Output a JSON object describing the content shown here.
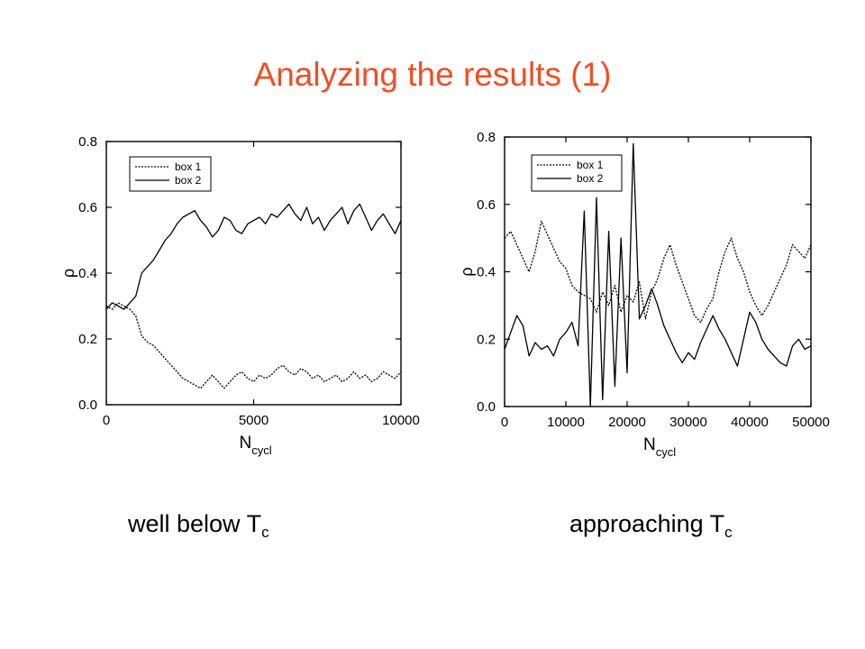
{
  "slide": {
    "title": "Analyzing the results (1)",
    "title_color": "#f04e23"
  },
  "chart_data": [
    {
      "type": "line",
      "ylabel": "ρ",
      "xlabel_main": "N",
      "xlabel_sub": "cycl",
      "xlim": [
        0,
        10000
      ],
      "ylim": [
        0,
        0.8
      ],
      "xticks": [
        "0",
        "5000",
        "10000"
      ],
      "xtick_values": [
        0,
        5000,
        10000
      ],
      "yticks": [
        "0.0",
        "0.2",
        "0.4",
        "0.6",
        "0.8"
      ],
      "ytick_values": [
        0,
        0.2,
        0.4,
        0.6,
        0.8
      ],
      "legend_position": "top-left",
      "grid": false,
      "series": [
        {
          "name": "box 1",
          "style": "dotted",
          "x": [
            0,
            200,
            400,
            600,
            800,
            1000,
            1200,
            1400,
            1600,
            1800,
            2000,
            2200,
            2400,
            2600,
            2800,
            3000,
            3200,
            3400,
            3600,
            3800,
            4000,
            4200,
            4400,
            4600,
            4800,
            5000,
            5200,
            5400,
            5600,
            5800,
            6000,
            6200,
            6400,
            6600,
            6800,
            7000,
            7200,
            7400,
            7600,
            7800,
            8000,
            8200,
            8400,
            8600,
            8800,
            9000,
            9200,
            9400,
            9600,
            9800,
            10000
          ],
          "y": [
            0.3,
            0.29,
            0.31,
            0.3,
            0.29,
            0.27,
            0.21,
            0.19,
            0.18,
            0.16,
            0.14,
            0.12,
            0.1,
            0.08,
            0.07,
            0.06,
            0.05,
            0.07,
            0.09,
            0.07,
            0.05,
            0.07,
            0.09,
            0.1,
            0.08,
            0.07,
            0.09,
            0.08,
            0.09,
            0.11,
            0.12,
            0.1,
            0.09,
            0.11,
            0.1,
            0.08,
            0.09,
            0.07,
            0.08,
            0.09,
            0.07,
            0.08,
            0.1,
            0.08,
            0.09,
            0.07,
            0.08,
            0.1,
            0.09,
            0.08,
            0.1
          ]
        },
        {
          "name": "box 2",
          "style": "solid",
          "x": [
            0,
            200,
            400,
            600,
            800,
            1000,
            1200,
            1400,
            1600,
            1800,
            2000,
            2200,
            2400,
            2600,
            2800,
            3000,
            3200,
            3400,
            3600,
            3800,
            4000,
            4200,
            4400,
            4600,
            4800,
            5000,
            5200,
            5400,
            5600,
            5800,
            6000,
            6200,
            6400,
            6600,
            6800,
            7000,
            7200,
            7400,
            7600,
            7800,
            8000,
            8200,
            8400,
            8600,
            8800,
            9000,
            9200,
            9400,
            9600,
            9800,
            10000
          ],
          "y": [
            0.29,
            0.31,
            0.3,
            0.29,
            0.31,
            0.33,
            0.4,
            0.42,
            0.44,
            0.47,
            0.5,
            0.52,
            0.55,
            0.57,
            0.58,
            0.59,
            0.56,
            0.54,
            0.51,
            0.53,
            0.57,
            0.56,
            0.53,
            0.52,
            0.55,
            0.56,
            0.57,
            0.55,
            0.58,
            0.57,
            0.59,
            0.61,
            0.58,
            0.56,
            0.6,
            0.55,
            0.57,
            0.53,
            0.56,
            0.58,
            0.6,
            0.55,
            0.59,
            0.61,
            0.57,
            0.53,
            0.56,
            0.58,
            0.55,
            0.52,
            0.56
          ]
        }
      ]
    },
    {
      "type": "line",
      "ylabel": "ρ",
      "xlabel_main": "N",
      "xlabel_sub": "cycl",
      "xlim": [
        0,
        50000
      ],
      "ylim": [
        0,
        0.8
      ],
      "xticks": [
        "0",
        "10000",
        "20000",
        "30000",
        "40000",
        "50000"
      ],
      "xtick_values": [
        0,
        10000,
        20000,
        30000,
        40000,
        50000
      ],
      "yticks": [
        "0.0",
        "0.2",
        "0.4",
        "0.6",
        "0.8"
      ],
      "ytick_values": [
        0,
        0.2,
        0.4,
        0.6,
        0.8
      ],
      "legend_position": "top-left",
      "grid": false,
      "series": [
        {
          "name": "box 1",
          "style": "dotted",
          "x": [
            0,
            1000,
            2000,
            3000,
            4000,
            5000,
            6000,
            7000,
            8000,
            9000,
            10000,
            11000,
            12000,
            13000,
            14000,
            15000,
            16000,
            17000,
            18000,
            19000,
            20000,
            21000,
            22000,
            23000,
            24000,
            25000,
            26000,
            27000,
            28000,
            29000,
            30000,
            31000,
            32000,
            33000,
            34000,
            35000,
            36000,
            37000,
            38000,
            39000,
            40000,
            41000,
            42000,
            43000,
            44000,
            45000,
            46000,
            47000,
            48000,
            49000,
            50000
          ],
          "y": [
            0.5,
            0.52,
            0.48,
            0.44,
            0.4,
            0.46,
            0.55,
            0.51,
            0.47,
            0.43,
            0.41,
            0.36,
            0.34,
            0.33,
            0.32,
            0.28,
            0.34,
            0.3,
            0.36,
            0.28,
            0.33,
            0.31,
            0.37,
            0.26,
            0.34,
            0.38,
            0.44,
            0.48,
            0.42,
            0.37,
            0.32,
            0.27,
            0.25,
            0.29,
            0.32,
            0.4,
            0.46,
            0.5,
            0.44,
            0.4,
            0.34,
            0.3,
            0.27,
            0.3,
            0.34,
            0.38,
            0.42,
            0.48,
            0.46,
            0.44,
            0.48
          ]
        },
        {
          "name": "box 2",
          "style": "solid",
          "x": [
            0,
            1000,
            2000,
            3000,
            4000,
            5000,
            6000,
            7000,
            8000,
            9000,
            10000,
            11000,
            12000,
            13000,
            14000,
            15000,
            16000,
            17000,
            18000,
            19000,
            20000,
            21000,
            22000,
            23000,
            24000,
            25000,
            26000,
            27000,
            28000,
            29000,
            30000,
            31000,
            32000,
            33000,
            34000,
            35000,
            36000,
            37000,
            38000,
            39000,
            40000,
            41000,
            42000,
            43000,
            44000,
            45000,
            46000,
            47000,
            48000,
            49000,
            50000
          ],
          "y": [
            0.17,
            0.22,
            0.27,
            0.24,
            0.15,
            0.19,
            0.17,
            0.18,
            0.15,
            0.2,
            0.22,
            0.25,
            0.18,
            0.58,
            0.0,
            0.62,
            0.02,
            0.52,
            0.06,
            0.5,
            0.1,
            0.78,
            0.26,
            0.3,
            0.35,
            0.3,
            0.24,
            0.2,
            0.16,
            0.13,
            0.16,
            0.14,
            0.19,
            0.23,
            0.27,
            0.23,
            0.2,
            0.16,
            0.12,
            0.2,
            0.28,
            0.25,
            0.2,
            0.17,
            0.15,
            0.13,
            0.12,
            0.18,
            0.2,
            0.17,
            0.18
          ]
        }
      ]
    }
  ],
  "captions": {
    "left_main": "well below T",
    "left_sub": "c",
    "right_main": "approaching T",
    "right_sub": "c"
  }
}
